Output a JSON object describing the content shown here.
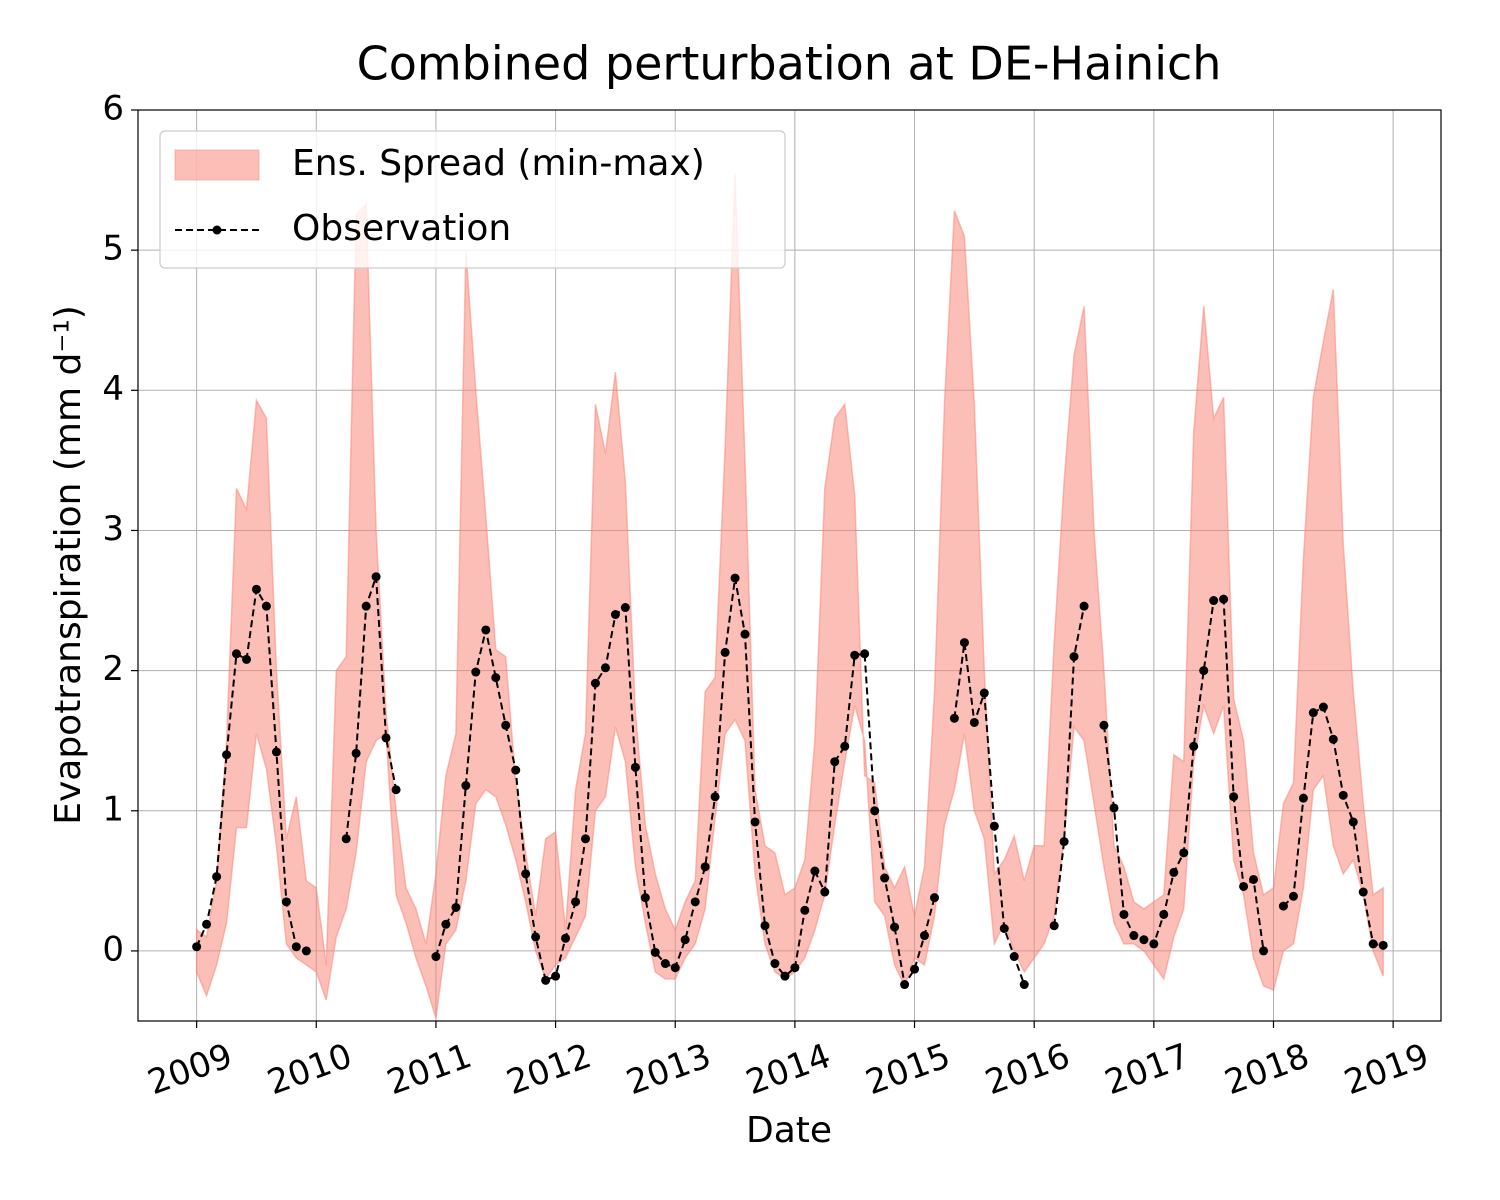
{
  "chart_data": {
    "type": "band-line",
    "title": "Combined perturbation at DE-Hainich",
    "xlabel": "Date",
    "ylabel": "Evapotranspiration  (mm d⁻¹)",
    "xlim": [
      2008.51,
      2019.4
    ],
    "ylim": [
      -0.5,
      6
    ],
    "xticks": [
      2009,
      2010,
      2011,
      2012,
      2013,
      2014,
      2015,
      2016,
      2017,
      2018,
      2019
    ],
    "yticks": [
      0,
      1,
      2,
      3,
      4,
      5,
      6
    ],
    "grid": true,
    "legend": "upper left",
    "x": [
      2009.0,
      2009.083,
      2009.167,
      2009.25,
      2009.333,
      2009.417,
      2009.5,
      2009.583,
      2009.667,
      2009.75,
      2009.833,
      2009.917,
      2010.0,
      2010.083,
      2010.167,
      2010.25,
      2010.333,
      2010.417,
      2010.5,
      2010.583,
      2010.667,
      2010.75,
      2010.833,
      2010.917,
      2011.0,
      2011.083,
      2011.167,
      2011.25,
      2011.333,
      2011.417,
      2011.5,
      2011.583,
      2011.667,
      2011.75,
      2011.833,
      2011.917,
      2012.0,
      2012.083,
      2012.167,
      2012.25,
      2012.333,
      2012.417,
      2012.5,
      2012.583,
      2012.667,
      2012.75,
      2012.833,
      2012.917,
      2013.0,
      2013.083,
      2013.167,
      2013.25,
      2013.333,
      2013.417,
      2013.5,
      2013.583,
      2013.667,
      2013.75,
      2013.833,
      2013.917,
      2014.0,
      2014.083,
      2014.167,
      2014.25,
      2014.333,
      2014.417,
      2014.5,
      2014.583,
      2014.667,
      2014.75,
      2014.833,
      2014.917,
      2015.0,
      2015.083,
      2015.167,
      2015.25,
      2015.333,
      2015.417,
      2015.5,
      2015.583,
      2015.667,
      2015.75,
      2015.833,
      2015.917,
      2016.0,
      2016.083,
      2016.167,
      2016.25,
      2016.333,
      2016.417,
      2016.5,
      2016.583,
      2016.667,
      2016.75,
      2016.833,
      2016.917,
      2017.0,
      2017.083,
      2017.167,
      2017.25,
      2017.333,
      2017.417,
      2017.5,
      2017.583,
      2017.667,
      2017.75,
      2017.833,
      2017.917,
      2018.0,
      2018.083,
      2018.167,
      2018.25,
      2018.333,
      2018.417,
      2018.5,
      2018.583,
      2018.667,
      2018.75,
      2018.833,
      2018.917
    ],
    "series": [
      {
        "name": "Ens. Spread (min-max)",
        "kind": "band",
        "color": "#fa8072",
        "alpha": 0.5,
        "values": [
          0.15,
          0.1,
          0.5,
          1.5,
          3.3,
          3.15,
          3.93,
          3.8,
          2.0,
          0.8,
          1.1,
          0.5,
          0.45,
          -0.1,
          2.0,
          2.1,
          5.25,
          5.33,
          3.0,
          1.7,
          1.0,
          0.45,
          0.3,
          0.05,
          0.55,
          1.25,
          1.55,
          5.0,
          4.0,
          3.1,
          2.15,
          2.1,
          1.2,
          0.7,
          0.25,
          0.8,
          0.85,
          0.15,
          1.15,
          1.55,
          3.9,
          3.55,
          4.13,
          3.35,
          1.7,
          0.9,
          0.55,
          0.3,
          0.15,
          0.35,
          0.5,
          1.85,
          1.95,
          3.6,
          5.55,
          3.5,
          1.15,
          0.75,
          0.7,
          0.4,
          0.45,
          0.65,
          1.5,
          3.3,
          3.8,
          3.9,
          3.25,
          1.25,
          1.2,
          0.6,
          0.45,
          0.6,
          0.25,
          0.6,
          1.85,
          3.9,
          5.28,
          5.1,
          3.9,
          2.0,
          0.55,
          0.65,
          0.82,
          0.5,
          0.75,
          0.75,
          2.2,
          3.35,
          4.25,
          4.6,
          3.0,
          2.0,
          0.75,
          0.6,
          0.35,
          0.3,
          0.35,
          0.4,
          1.4,
          1.35,
          3.7,
          4.6,
          3.8,
          3.95,
          1.8,
          1.5,
          0.7,
          0.4,
          0.45,
          1.05,
          1.2,
          2.8,
          3.95,
          4.35,
          4.72,
          2.9,
          1.85,
          1.05,
          0.4,
          0.45
        ],
        "lower": [
          -0.15,
          -0.32,
          -0.1,
          0.2,
          0.88,
          0.88,
          1.55,
          1.3,
          0.75,
          0.05,
          -0.05,
          -0.1,
          -0.15,
          -0.35,
          0.1,
          0.3,
          0.7,
          1.35,
          1.5,
          1.55,
          0.4,
          0.2,
          -0.05,
          -0.25,
          -0.48,
          0.05,
          0.15,
          0.5,
          1.05,
          1.15,
          1.1,
          0.9,
          0.65,
          0.35,
          0.0,
          -0.2,
          -0.1,
          -0.05,
          0.1,
          0.25,
          1.0,
          1.1,
          1.6,
          1.35,
          0.6,
          0.2,
          -0.15,
          -0.2,
          -0.2,
          -0.05,
          0.05,
          0.3,
          0.95,
          1.55,
          1.65,
          1.5,
          0.55,
          0.05,
          -0.15,
          -0.2,
          -0.15,
          -0.05,
          0.15,
          0.4,
          0.9,
          1.35,
          1.75,
          1.5,
          0.35,
          0.25,
          -0.1,
          -0.25,
          -0.05,
          -0.1,
          0.25,
          0.9,
          1.15,
          1.55,
          1.0,
          0.8,
          0.05,
          0.2,
          0.0,
          -0.15,
          -0.05,
          0.05,
          0.25,
          0.8,
          1.6,
          1.5,
          1.05,
          0.6,
          0.2,
          0.05,
          0.05,
          0.0,
          -0.1,
          -0.2,
          0.1,
          0.3,
          1.35,
          1.75,
          1.55,
          1.75,
          0.65,
          0.4,
          -0.05,
          -0.25,
          -0.28,
          0.0,
          0.05,
          0.45,
          1.15,
          1.25,
          0.75,
          0.55,
          0.65,
          0.4,
          0.0,
          -0.18
        ]
      },
      {
        "name": "Observation",
        "kind": "line",
        "color": "#000000",
        "values": [
          0.03,
          0.19,
          0.53,
          1.4,
          2.12,
          2.08,
          2.58,
          2.46,
          1.42,
          0.35,
          0.03,
          0.0,
          null,
          null,
          null,
          0.8,
          1.41,
          2.46,
          2.67,
          1.52,
          1.15,
          null,
          null,
          null,
          -0.04,
          0.19,
          0.31,
          1.18,
          1.99,
          2.29,
          1.95,
          1.61,
          1.29,
          0.55,
          0.1,
          -0.21,
          -0.18,
          0.09,
          0.35,
          0.8,
          1.91,
          2.02,
          2.4,
          2.45,
          1.31,
          0.38,
          -0.01,
          -0.09,
          -0.12,
          0.08,
          0.35,
          0.6,
          1.1,
          2.13,
          2.66,
          2.26,
          0.92,
          0.18,
          -0.09,
          -0.18,
          -0.12,
          0.29,
          0.57,
          0.42,
          1.35,
          1.46,
          2.11,
          2.12,
          1.0,
          0.52,
          0.17,
          -0.24,
          -0.13,
          0.11,
          0.38,
          null,
          1.66,
          2.2,
          1.63,
          1.84,
          0.89,
          0.16,
          -0.04,
          -0.24,
          null,
          null,
          0.18,
          0.78,
          2.1,
          2.46,
          null,
          1.61,
          1.02,
          0.26,
          0.11,
          0.08,
          0.05,
          0.26,
          0.56,
          0.7,
          1.46,
          2.0,
          2.5,
          2.51,
          1.1,
          0.46,
          0.51,
          0.0,
          null,
          0.32,
          0.39,
          1.09,
          1.7,
          1.74,
          1.51,
          1.11,
          0.92,
          0.42,
          0.05,
          0.04
        ]
      }
    ]
  }
}
